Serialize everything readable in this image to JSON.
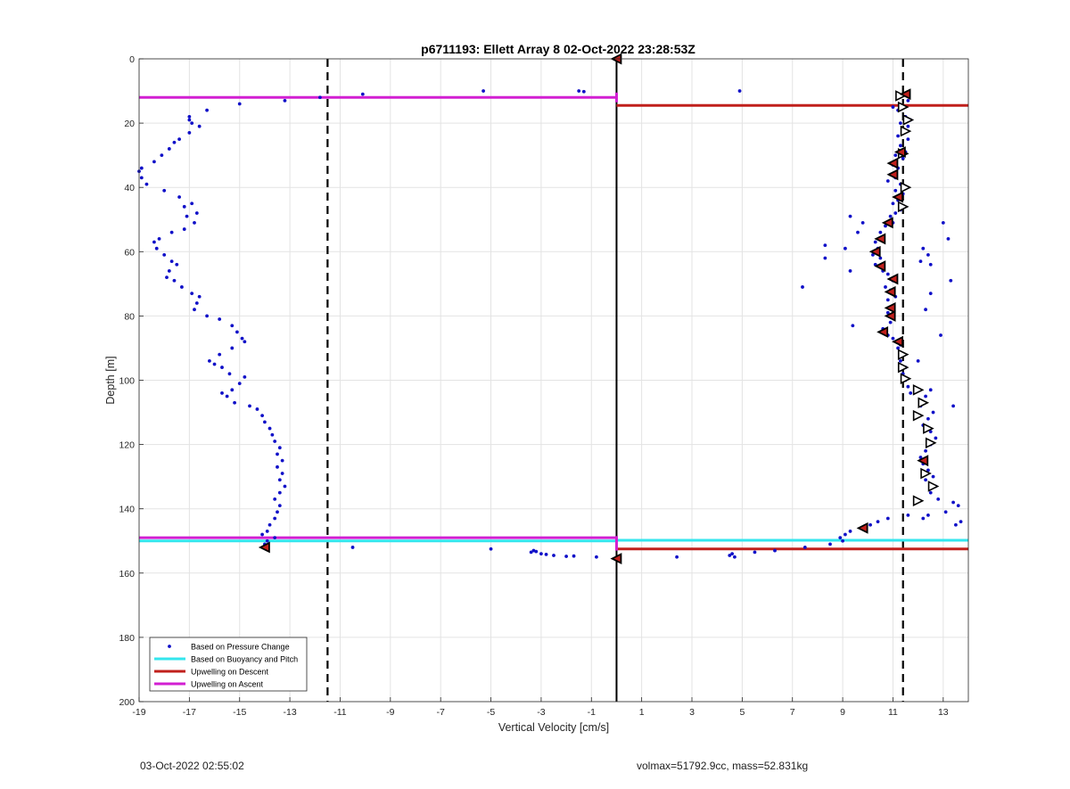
{
  "chart_data": {
    "type": "scatter",
    "title": "p6711193: Ellett Array 8 02-Oct-2022 23:28:53Z",
    "xlabel": "Vertical Velocity [cm/s]",
    "ylabel": "Depth [m]",
    "xlim": [
      -19,
      14
    ],
    "ylim": [
      200,
      0
    ],
    "y_reversed": true,
    "grid": true,
    "xticks": [
      -19,
      -17,
      -15,
      -13,
      -11,
      -9,
      -7,
      -5,
      -3,
      -1,
      1,
      3,
      5,
      7,
      9,
      11,
      13
    ],
    "yticks": [
      0,
      20,
      40,
      60,
      80,
      100,
      120,
      140,
      160,
      180,
      200
    ],
    "legend": {
      "position": "bottom-left",
      "entries": [
        {
          "label": "Based on Pressure Change",
          "style": "dot",
          "color": "#1010c8"
        },
        {
          "label": "Based on Buoyancy and Pitch",
          "style": "line",
          "color": "#33e6ee"
        },
        {
          "label": "Upwelling on Descent",
          "style": "line",
          "color": "#c0201c"
        },
        {
          "label": "Upwelling on Ascent",
          "style": "line",
          "color": "#d21fd2"
        }
      ]
    },
    "reference_lines": {
      "zero_line_x": 0,
      "dashed_x": [
        -11.5,
        11.4
      ]
    },
    "upwelling_ascent": [
      {
        "x0": -19,
        "x1": 0,
        "y": 12
      },
      {
        "x0": -19,
        "x1": 0,
        "y": 149
      }
    ],
    "upwelling_descent": [
      {
        "x0": 0,
        "x1": 14,
        "y": 14.5
      },
      {
        "x0": 0,
        "x1": 14,
        "y": 152.5
      }
    ],
    "buoyancy_pitch": [
      {
        "x0": -19,
        "x1": 0,
        "y": 150
      },
      {
        "x0": 0,
        "x1": 14,
        "y": 149.8
      }
    ],
    "pressure_change_points": {
      "ascent_profile": [
        [
          -14,
          151
        ],
        [
          -14,
          152
        ],
        [
          -13.9,
          150
        ],
        [
          -14.1,
          148
        ],
        [
          -13.6,
          149
        ],
        [
          -13.9,
          147
        ],
        [
          -13.8,
          145
        ],
        [
          -13.6,
          143
        ],
        [
          -13.5,
          141
        ],
        [
          -13.4,
          139
        ],
        [
          -13.6,
          137
        ],
        [
          -13.4,
          135
        ],
        [
          -13.2,
          133
        ],
        [
          -13.4,
          131
        ],
        [
          -13.3,
          129
        ],
        [
          -13.5,
          127
        ],
        [
          -13.3,
          125
        ],
        [
          -13.5,
          123
        ],
        [
          -13.4,
          121
        ],
        [
          -13.6,
          119
        ],
        [
          -13.7,
          117
        ],
        [
          -13.8,
          115
        ],
        [
          -14.0,
          113
        ],
        [
          -14.1,
          111
        ],
        [
          -14.3,
          109
        ],
        [
          -14.6,
          108
        ],
        [
          -15.2,
          107
        ],
        [
          -15.5,
          105
        ],
        [
          -15.7,
          104
        ],
        [
          -15.3,
          103
        ],
        [
          -15.0,
          101
        ],
        [
          -14.8,
          99
        ],
        [
          -15.4,
          98
        ],
        [
          -15.7,
          96
        ],
        [
          -16.0,
          95
        ],
        [
          -16.2,
          94
        ],
        [
          -15.8,
          92
        ],
        [
          -15.3,
          90
        ],
        [
          -14.8,
          88
        ],
        [
          -14.9,
          87
        ],
        [
          -15.1,
          85
        ],
        [
          -15.3,
          83
        ],
        [
          -15.8,
          81
        ],
        [
          -16.3,
          80
        ],
        [
          -16.8,
          78
        ],
        [
          -16.7,
          76
        ],
        [
          -16.6,
          74
        ],
        [
          -16.9,
          73
        ],
        [
          -17.3,
          71
        ],
        [
          -17.6,
          69
        ],
        [
          -17.9,
          68
        ],
        [
          -17.8,
          66
        ],
        [
          -17.5,
          64
        ],
        [
          -17.7,
          63
        ],
        [
          -18.0,
          61
        ],
        [
          -18.3,
          59
        ],
        [
          -18.4,
          57
        ],
        [
          -18.2,
          56
        ],
        [
          -17.7,
          54
        ],
        [
          -17.2,
          53
        ],
        [
          -16.8,
          51
        ],
        [
          -17.1,
          49
        ],
        [
          -16.7,
          48
        ],
        [
          -17.2,
          46
        ],
        [
          -16.9,
          45
        ],
        [
          -17.4,
          43
        ],
        [
          -18.0,
          41
        ],
        [
          -18.7,
          39
        ],
        [
          -18.9,
          37
        ],
        [
          -19.0,
          35
        ],
        [
          -18.9,
          34
        ],
        [
          -18.4,
          32
        ],
        [
          -18.1,
          30
        ],
        [
          -17.8,
          28
        ],
        [
          -17.6,
          26
        ],
        [
          -17.4,
          25
        ],
        [
          -17.0,
          23
        ],
        [
          -16.6,
          21
        ],
        [
          -16.9,
          20
        ],
        [
          -17.0,
          19
        ],
        [
          -17.0,
          18
        ],
        [
          -16.3,
          16
        ],
        [
          -15.0,
          14
        ],
        [
          -13.2,
          13
        ],
        [
          -11.8,
          12
        ],
        [
          -10.1,
          11
        ],
        [
          -5.3,
          10
        ],
        [
          -1.5,
          10
        ],
        [
          -1.3,
          10.2
        ],
        [
          -10.5,
          152
        ],
        [
          -5.0,
          152.5
        ],
        [
          -3.3,
          153
        ],
        [
          -3.4,
          153.5
        ],
        [
          -3.2,
          153.3
        ],
        [
          -3.0,
          154
        ],
        [
          -2.8,
          154.2
        ],
        [
          -2.5,
          154.5
        ],
        [
          -2.0,
          154.8
        ],
        [
          -1.7,
          154.7
        ],
        [
          -0.8,
          155
        ]
      ],
      "descent_profile": [
        [
          4.9,
          10
        ],
        [
          11.2,
          12
        ],
        [
          11.5,
          11
        ],
        [
          11.6,
          13
        ],
        [
          11.0,
          15
        ],
        [
          11.2,
          16
        ],
        [
          11.5,
          18
        ],
        [
          11.7,
          19
        ],
        [
          11.3,
          20
        ],
        [
          11.6,
          21
        ],
        [
          11.4,
          23
        ],
        [
          11.2,
          24
        ],
        [
          11.6,
          25
        ],
        [
          11.3,
          27
        ],
        [
          11.5,
          29
        ],
        [
          11.1,
          30
        ],
        [
          11.4,
          31
        ],
        [
          11.0,
          33
        ],
        [
          11.2,
          34
        ],
        [
          10.9,
          36
        ],
        [
          11.1,
          37
        ],
        [
          10.8,
          38
        ],
        [
          11.3,
          39
        ],
        [
          11.1,
          41
        ],
        [
          11.4,
          42
        ],
        [
          11.2,
          44
        ],
        [
          11.0,
          45
        ],
        [
          11.3,
          47
        ],
        [
          11.1,
          48
        ],
        [
          10.9,
          49
        ],
        [
          11.0,
          51
        ],
        [
          10.7,
          52
        ],
        [
          10.5,
          54
        ],
        [
          10.6,
          56
        ],
        [
          10.3,
          57
        ],
        [
          10.4,
          59
        ],
        [
          10.2,
          61
        ],
        [
          10.5,
          62
        ],
        [
          10.3,
          64
        ],
        [
          10.6,
          66
        ],
        [
          10.8,
          67
        ],
        [
          11.0,
          69
        ],
        [
          10.7,
          71
        ],
        [
          10.9,
          72
        ],
        [
          11.1,
          74
        ],
        [
          10.8,
          75
        ],
        [
          11.0,
          77
        ],
        [
          10.8,
          79
        ],
        [
          11.0,
          80
        ],
        [
          10.9,
          82
        ],
        [
          10.6,
          84
        ],
        [
          10.8,
          86
        ],
        [
          11.0,
          87
        ],
        [
          11.3,
          89
        ],
        [
          11.2,
          90
        ],
        [
          11.4,
          92
        ],
        [
          11.3,
          94
        ],
        [
          11.5,
          96
        ],
        [
          11.4,
          98
        ],
        [
          11.5,
          100
        ],
        [
          11.6,
          102
        ],
        [
          11.7,
          104
        ],
        [
          12.5,
          103
        ],
        [
          12.3,
          105
        ],
        [
          12.1,
          108
        ],
        [
          12.6,
          110
        ],
        [
          12.4,
          112
        ],
        [
          12.2,
          114
        ],
        [
          12.5,
          116
        ],
        [
          12.7,
          118
        ],
        [
          12.5,
          120
        ],
        [
          12.3,
          122
        ],
        [
          12.1,
          124
        ],
        [
          12.2,
          126
        ],
        [
          12.4,
          128
        ],
        [
          12.6,
          130
        ],
        [
          12.3,
          131
        ],
        [
          12.7,
          133
        ],
        [
          12.5,
          135
        ],
        [
          12.8,
          137
        ],
        [
          13.4,
          138
        ],
        [
          13.6,
          139
        ],
        [
          13.1,
          141
        ],
        [
          13.7,
          144
        ],
        [
          13.5,
          145
        ],
        [
          12.4,
          142
        ],
        [
          12.2,
          143
        ],
        [
          11.6,
          142
        ],
        [
          10.8,
          143
        ],
        [
          10.4,
          144
        ],
        [
          10.1,
          145
        ],
        [
          9.8,
          146
        ],
        [
          9.3,
          147
        ],
        [
          9.1,
          148
        ],
        [
          8.9,
          149
        ],
        [
          9.0,
          150
        ],
        [
          8.5,
          151
        ],
        [
          7.5,
          152
        ],
        [
          6.3,
          153
        ],
        [
          5.5,
          153.5
        ],
        [
          4.6,
          154
        ],
        [
          4.5,
          154.5
        ],
        [
          4.7,
          155
        ],
        [
          2.4,
          155
        ],
        [
          9.3,
          49
        ],
        [
          9.8,
          51
        ],
        [
          9.6,
          54
        ],
        [
          8.3,
          58
        ],
        [
          9.1,
          59
        ],
        [
          8.3,
          62
        ],
        [
          9.3,
          66
        ],
        [
          7.4,
          71
        ],
        [
          9.4,
          83
        ],
        [
          13.0,
          51
        ],
        [
          13.2,
          56
        ],
        [
          12.2,
          59
        ],
        [
          12.4,
          61
        ],
        [
          12.5,
          64
        ],
        [
          13.3,
          69
        ],
        [
          12.5,
          73
        ],
        [
          12.3,
          78
        ],
        [
          12.9,
          86
        ],
        [
          12.0,
          94
        ],
        [
          13.4,
          108
        ],
        [
          12.1,
          63
        ]
      ]
    },
    "ascent_markers": [
      [
        11.3,
        11.5
      ],
      [
        11.4,
        15
      ],
      [
        11.6,
        19
      ],
      [
        11.5,
        22.5
      ],
      [
        11.4,
        29.5
      ],
      [
        11.5,
        40
      ],
      [
        11.4,
        46
      ],
      [
        11.4,
        92
      ],
      [
        11.4,
        96
      ],
      [
        11.5,
        99.5
      ],
      [
        12.0,
        103
      ],
      [
        12.2,
        107
      ],
      [
        12.0,
        111
      ],
      [
        12.4,
        115
      ],
      [
        12.5,
        119.5
      ],
      [
        12.3,
        129
      ],
      [
        12.6,
        133
      ],
      [
        12.0,
        137.5
      ]
    ],
    "descent_markers": [
      [
        0,
        0
      ],
      [
        11.5,
        11
      ],
      [
        11.3,
        29
      ],
      [
        11.0,
        32.5
      ],
      [
        11.0,
        36
      ],
      [
        11.2,
        43
      ],
      [
        10.8,
        51
      ],
      [
        10.5,
        56
      ],
      [
        10.3,
        60
      ],
      [
        10.5,
        64.5
      ],
      [
        11.0,
        68.5
      ],
      [
        10.9,
        72.5
      ],
      [
        10.9,
        77.5
      ],
      [
        10.9,
        80
      ],
      [
        11.2,
        88
      ],
      [
        10.6,
        85
      ],
      [
        12.2,
        125
      ],
      [
        9.8,
        146
      ],
      [
        -14.0,
        152
      ],
      [
        0,
        155.5
      ]
    ]
  },
  "footer": {
    "left": "03-Oct-2022 02:55:02",
    "right": "volmax=51792.9cc, mass=52.831kg"
  }
}
